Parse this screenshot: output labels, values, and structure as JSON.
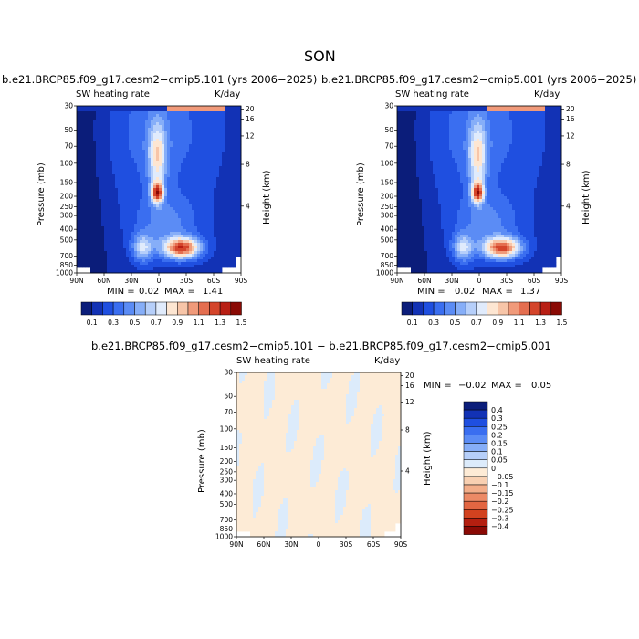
{
  "page": {
    "title": "SON",
    "diff_title": "b.e21.BRCP85.f09_g17.cesm2−cmip5.101 − b.e21.BRCP85.f09_g17.cesm2−cmip5.001"
  },
  "colors": {
    "abs_scale": [
      "#0b1d7a",
      "#1232b5",
      "#1f4fe0",
      "#3a6ef0",
      "#5b8cf5",
      "#86aef8",
      "#b6cffa",
      "#e0ebfc",
      "#fde6d2",
      "#f7c5a8",
      "#f09a7a",
      "#e46e50",
      "#d4452b",
      "#b81f14",
      "#8a0a05"
    ],
    "diff_scale": [
      "#0b1d7a",
      "#1232b5",
      "#1f4fe0",
      "#3a6ef0",
      "#5b8cf5",
      "#86aef8",
      "#b6cffa",
      "#dcebfb",
      "#fdebd6",
      "#f8d0b2",
      "#f3ae8a",
      "#ec8a66",
      "#e26642",
      "#d2421f",
      "#b41f10",
      "#8a0a05"
    ]
  },
  "chart_data": [
    {
      "type": "heatmap",
      "title": "b.e21.BRCP85.f09_g17.cesm2−cmip5.101 (yrs 2006−2025)",
      "left_label": "SW heating rate",
      "right_label": "K/day",
      "ylabel": "Pressure (mb)",
      "y2label": "Height (km)",
      "xticks": [
        "90N",
        "60N",
        "30N",
        "0",
        "30S",
        "60S",
        "90S"
      ],
      "yticks": [
        "30",
        "50",
        "70",
        "100",
        "150",
        "200",
        "250",
        "300",
        "400",
        "500",
        "700",
        "850",
        "1000"
      ],
      "y2ticks": [
        "20",
        "16",
        "12",
        "8",
        "4"
      ],
      "min_label": "MIN =",
      "min_value": "0.02",
      "max_label": "MAX =",
      "max_value": "1.41",
      "levels": [
        "0.1",
        "0.3",
        "0.5",
        "0.7",
        "0.9",
        "1.1",
        "1.3",
        "1.5"
      ]
    },
    {
      "type": "heatmap",
      "title": "b.e21.BRCP85.f09_g17.cesm2−cmip5.001 (yrs 2006−2025)",
      "left_label": "SW heating rate",
      "right_label": "K/day",
      "ylabel": "Pressure (mb)",
      "y2label": "Height (km)",
      "xticks": [
        "90N",
        "60N",
        "30N",
        "0",
        "30S",
        "60S",
        "90S"
      ],
      "yticks": [
        "30",
        "50",
        "70",
        "100",
        "150",
        "200",
        "250",
        "300",
        "400",
        "500",
        "700",
        "850",
        "1000"
      ],
      "y2ticks": [
        "20",
        "16",
        "12",
        "8",
        "4"
      ],
      "min_label": "MIN =",
      "min_value": "0.02",
      "max_label": "MAX =",
      "max_value": "1.37",
      "levels": [
        "0.1",
        "0.3",
        "0.5",
        "0.7",
        "0.9",
        "1.1",
        "1.3",
        "1.5"
      ]
    },
    {
      "type": "heatmap",
      "title": "",
      "left_label": "SW heating rate",
      "right_label": "K/day",
      "ylabel": "Pressure (mb)",
      "y2label": "Height (km)",
      "xticks": [
        "90N",
        "60N",
        "30N",
        "0",
        "30S",
        "60S",
        "90S"
      ],
      "yticks": [
        "30",
        "50",
        "70",
        "100",
        "150",
        "200",
        "250",
        "300",
        "400",
        "500",
        "700",
        "850",
        "1000"
      ],
      "y2ticks": [
        "20",
        "16",
        "12",
        "8",
        "4"
      ],
      "min_label": "MIN =",
      "min_value": "−0.02",
      "max_label": "MAX =",
      "max_value": "0.05",
      "levels": [
        "0.4",
        "0.3",
        "0.25",
        "0.2",
        "0.15",
        "0.1",
        "0.05",
        "0",
        "−0.05",
        "−0.1",
        "−0.15",
        "−0.2",
        "−0.25",
        "−0.3",
        "−0.4"
      ]
    }
  ]
}
